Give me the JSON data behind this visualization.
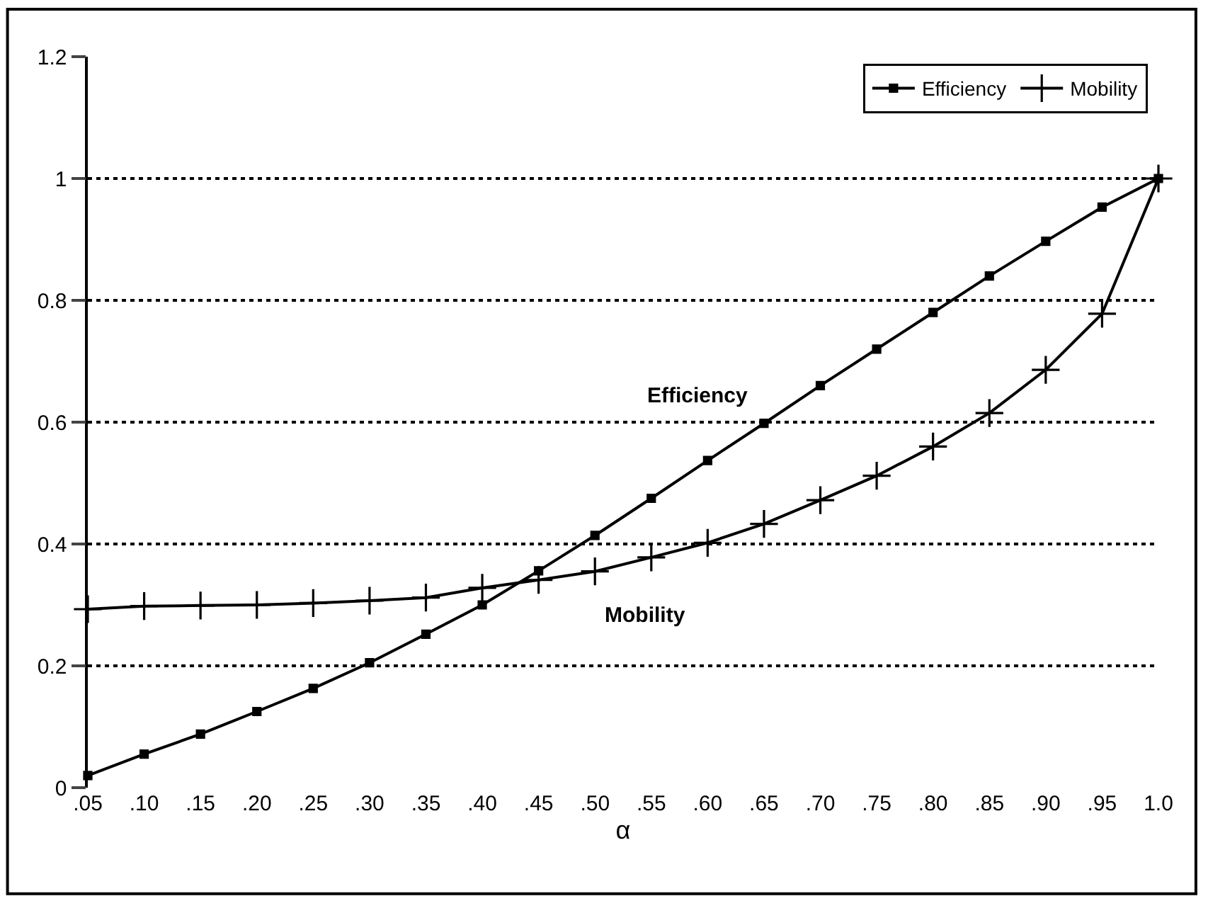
{
  "chart_data": {
    "type": "line",
    "xlabel": "α",
    "categories": [
      ".05",
      ".10",
      ".15",
      ".20",
      ".25",
      ".30",
      ".35",
      ".40",
      ".45",
      ".50",
      ".55",
      ".60",
      ".65",
      ".70",
      ".75",
      ".80",
      ".85",
      ".90",
      ".95",
      "1.0"
    ],
    "series": [
      {
        "name": "Efficiency",
        "color": "#000000",
        "marker": "square",
        "values": [
          0.02,
          0.055,
          0.088,
          0.125,
          0.163,
          0.205,
          0.252,
          0.3,
          0.356,
          0.414,
          0.475,
          0.537,
          0.598,
          0.66,
          0.72,
          0.78,
          0.84,
          0.897,
          0.953,
          1.0
        ]
      },
      {
        "name": "Mobility",
        "color": "#000000",
        "marker": "cross",
        "values": [
          0.293,
          0.298,
          0.299,
          0.3,
          0.303,
          0.307,
          0.312,
          0.328,
          0.341,
          0.355,
          0.378,
          0.402,
          0.433,
          0.472,
          0.512,
          0.56,
          0.615,
          0.686,
          0.778,
          1.0
        ]
      }
    ],
    "ylim": [
      0,
      1.2
    ],
    "yticks": [
      0,
      0.2,
      0.4,
      0.6,
      0.8,
      1,
      1.2
    ],
    "grid": "y",
    "legend": "top right",
    "line_style": "solid",
    "annotations": [
      "Efficiency",
      "Mobility"
    ]
  }
}
